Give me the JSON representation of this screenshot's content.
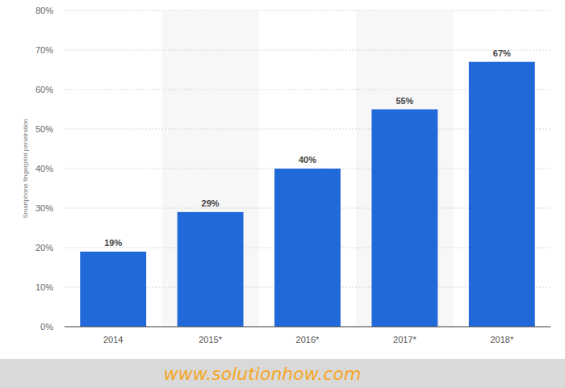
{
  "chart_data": {
    "type": "bar",
    "y_label": "Smartphone fingerprint penetration",
    "categories": [
      "2014",
      "2015*",
      "2016*",
      "2017*",
      "2018*"
    ],
    "values": [
      19,
      29,
      40,
      55,
      67
    ],
    "value_labels": [
      "19%",
      "29%",
      "40%",
      "55%",
      "67%"
    ],
    "color": "#2169d9",
    "ylim": [
      0,
      80
    ],
    "yticks": [
      {
        "value": 0,
        "label": "0%"
      },
      {
        "value": 10,
        "label": "10%"
      },
      {
        "value": 20,
        "label": "20%"
      },
      {
        "value": 30,
        "label": "30%"
      },
      {
        "value": 40,
        "label": "40%"
      },
      {
        "value": 50,
        "label": "50%"
      },
      {
        "value": 60,
        "label": "60%"
      },
      {
        "value": 70,
        "label": "70%"
      },
      {
        "value": 80,
        "label": "80%"
      }
    ],
    "grid": true,
    "data_labels": true,
    "annotations": [
      "www.solutionhow.com"
    ]
  }
}
